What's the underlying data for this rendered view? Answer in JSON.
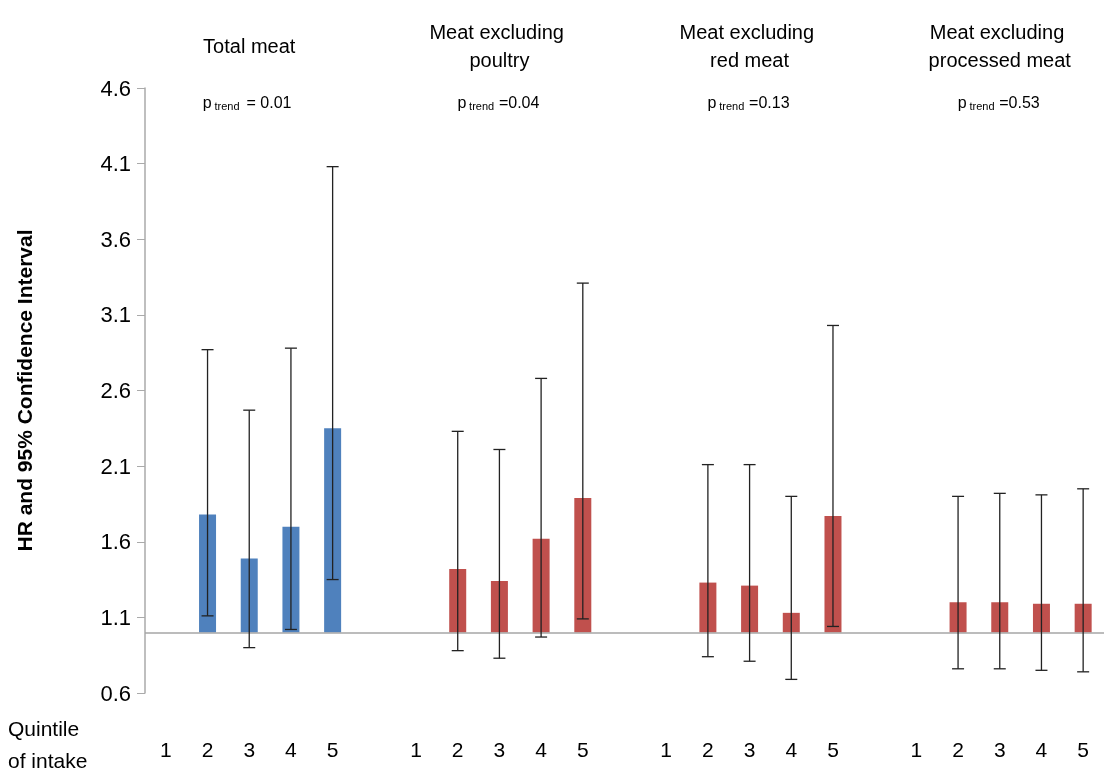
{
  "chart_data": {
    "type": "bar",
    "ylabel": "HR and 95% Confidence Interval",
    "xlabel": "Quintile of intake",
    "annotations": [
      "Total meat",
      "p$_{trend}$= 0.01",
      "Meat excluding poultry",
      "p$_{trend}$=0.04",
      "Meat excluding red meat",
      "p$_{trend}$=0.13",
      "Meat excluding processed meat",
      "p$_{trend}$=0.53"
    ],
    "categories": [
      "1",
      "2",
      "3",
      "4",
      "5",
      null,
      "1",
      "2",
      "3",
      "4",
      "5",
      null,
      "1",
      "2",
      "3",
      "4",
      "5",
      null,
      "1",
      "2",
      "3",
      "4",
      "5"
    ],
    "base": [
      null,
      1,
      1,
      1,
      1,
      null,
      null,
      1,
      1,
      1,
      1,
      null,
      null,
      1,
      1,
      1,
      1,
      null,
      null,
      1,
      1,
      1,
      1
    ],
    "values": [
      null,
      0.78,
      0.49,
      0.7,
      1.35,
      null,
      null,
      0.42,
      0.34,
      0.62,
      0.89,
      null,
      null,
      0.33,
      0.31,
      0.13,
      0.77,
      null,
      null,
      0.2,
      0.2,
      0.19,
      0.19
    ],
    "errors": [
      null,
      [
        1.11,
        2.87
      ],
      [
        0.9,
        2.47
      ],
      [
        1.02,
        2.88
      ],
      [
        1.35,
        4.08
      ],
      null,
      null,
      [
        0.88,
        2.33
      ],
      [
        0.83,
        2.21
      ],
      [
        0.97,
        2.68
      ],
      [
        1.09,
        3.31
      ],
      null,
      null,
      [
        0.84,
        2.11
      ],
      [
        0.81,
        2.11
      ],
      [
        0.69,
        1.9
      ],
      [
        1.04,
        3.03
      ],
      null,
      null,
      [
        0.76,
        1.9
      ],
      [
        0.76,
        1.92
      ],
      [
        0.75,
        1.91
      ],
      [
        0.74,
        1.95
      ]
    ],
    "colors": [
      null,
      "#4f81bd",
      "#4f81bd",
      "#4f81bd",
      "#4f81bd",
      null,
      null,
      "#c0504d",
      "#c0504d",
      "#c0504d",
      "#c0504d",
      null,
      null,
      "#c0504d",
      "#c0504d",
      "#c0504d",
      "#c0504d",
      null,
      null,
      "#c0504d",
      "#c0504d",
      "#c0504d",
      "#c0504d"
    ],
    "ylim": [
      0.6,
      4.6
    ],
    "yticks": [
      0.6,
      1.1,
      1.6,
      2.1,
      2.6,
      3.1,
      3.6,
      4.1,
      4.6
    ],
    "ref_lines": [
      {
        "axis": "y",
        "value": 1,
        "color": "#a6a6a6"
      }
    ]
  }
}
